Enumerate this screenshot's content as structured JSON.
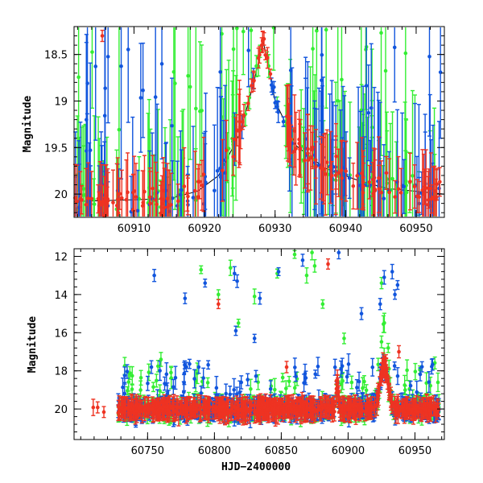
{
  "figure": {
    "x_axis_title": "HJD−2400000",
    "y_axis_title": "Magnitude",
    "series_colors": {
      "green": "#33ee33",
      "blue": "#1155dd",
      "red": "#ee3322"
    }
  },
  "chart_data": [
    {
      "type": "scatter",
      "name": "zoom",
      "xlim": [
        60901.5,
        60954
      ],
      "ylim": [
        20.25,
        18.2
      ],
      "y_inverted": true,
      "xticks": [
        60910,
        60920,
        60930,
        60940,
        60950
      ],
      "yticks": [
        18.5,
        19,
        19.5,
        20
      ],
      "xlabel": "",
      "ylabel": "Magnitude",
      "series": [
        {
          "name": "green",
          "color": "#33ee33"
        },
        {
          "name": "blue",
          "color": "#1155dd"
        },
        {
          "name": "red",
          "color": "#ee3322"
        }
      ],
      "model_curve": {
        "x": [
          60901.5,
          60915,
          60919,
          60922,
          60925,
          60927,
          60928.3,
          60930,
          60933,
          60937,
          60942,
          60946,
          60954
        ],
        "y": [
          20.08,
          20.05,
          19.97,
          19.8,
          19.35,
          18.8,
          18.35,
          19.0,
          19.48,
          19.72,
          19.86,
          19.94,
          20.0
        ]
      }
    },
    {
      "type": "scatter",
      "name": "full",
      "xlim": [
        60695,
        60972
      ],
      "ylim": [
        21.6,
        11.6
      ],
      "y_inverted": true,
      "xticks": [
        60750,
        60800,
        60850,
        60900,
        60950
      ],
      "yticks": [
        12,
        14,
        16,
        18,
        20
      ],
      "xlabel": "HJD−2400000",
      "ylabel": "Magnitude",
      "series": [
        {
          "name": "green",
          "color": "#33ee33"
        },
        {
          "name": "blue",
          "color": "#1155dd"
        },
        {
          "name": "red",
          "color": "#ee3322"
        }
      ],
      "outliers": {
        "green": [
          [
            60790,
            12.7
          ],
          [
            60803,
            14.0
          ],
          [
            60812,
            12.6
          ],
          [
            60830,
            14.1
          ],
          [
            60847,
            12.9
          ],
          [
            60860,
            11.9
          ],
          [
            60873,
            11.8
          ],
          [
            60869,
            13.0
          ],
          [
            60881,
            14.5
          ],
          [
            60897,
            16.3
          ],
          [
            60925,
            13.4
          ],
          [
            60930,
            16.8
          ],
          [
            60875,
            12.5
          ],
          [
            60760,
            17.4
          ],
          [
            60818,
            15.5
          ]
        ],
        "blue": [
          [
            60755,
            13.0
          ],
          [
            60778,
            14.2
          ],
          [
            60793,
            13.4
          ],
          [
            60815,
            12.9
          ],
          [
            60817,
            13.3
          ],
          [
            60834,
            14.2
          ],
          [
            60848,
            12.8
          ],
          [
            60866,
            12.2
          ],
          [
            60893,
            11.8
          ],
          [
            60910,
            15.0
          ],
          [
            60924,
            14.5
          ],
          [
            60927,
            13.1
          ],
          [
            60933,
            12.8
          ],
          [
            60937,
            13.5
          ],
          [
            60935,
            14.0
          ],
          [
            60816,
            15.9
          ],
          [
            60830,
            16.3
          ]
        ],
        "red": [
          [
            60803,
            14.5
          ],
          [
            60885,
            12.4
          ],
          [
            60938,
            17.0
          ],
          [
            60854,
            17.8
          ]
        ]
      }
    }
  ]
}
